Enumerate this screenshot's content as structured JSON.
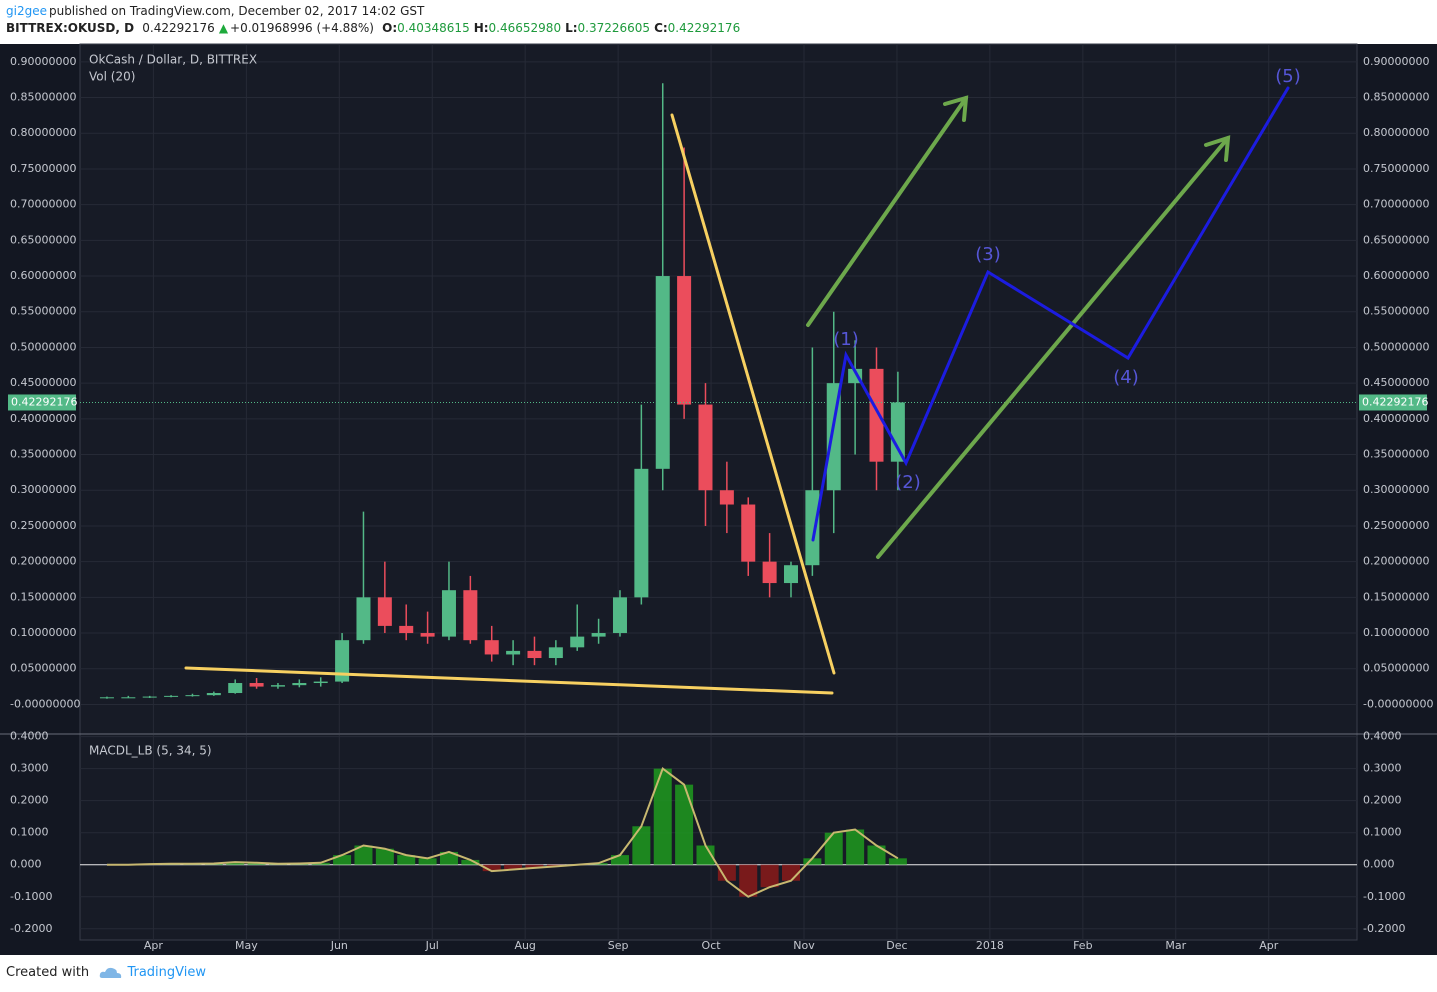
{
  "header": {
    "author": "gi2gee",
    "published": "published on TradingView.com, December 02, 2017 14:02 GST",
    "symbol": "BITTREX:OKUSD, D",
    "price": "0.42292176",
    "change": "+0.01968996 (+4.88%)",
    "ohlc": [
      {
        "label": "O:",
        "value": "0.40348615"
      },
      {
        "label": "H:",
        "value": "0.46652980"
      },
      {
        "label": "L:",
        "value": "0.37226605"
      },
      {
        "label": "C:",
        "value": "0.42292176"
      }
    ]
  },
  "chart_data": [
    {
      "type": "candlestick",
      "title": "OkCash / Dollar, D, BITTREX",
      "indicator": "Vol (20)",
      "up_color": "#53b987",
      "down_color": "#eb4d5c",
      "grid": true,
      "x": [
        3.5,
        3.73,
        3.96,
        4.19,
        4.42,
        4.65,
        4.88,
        5.11,
        5.34,
        5.57,
        5.8,
        6.03,
        6.26,
        6.49,
        6.72,
        6.95,
        7.18,
        7.41,
        7.64,
        7.87,
        8.1,
        8.33,
        8.56,
        8.79,
        9.02,
        9.25,
        9.48,
        9.71,
        9.94,
        10.17,
        10.4,
        10.63,
        10.86,
        11.09,
        11.32,
        11.55,
        11.78,
        12.01
      ],
      "open": [
        0.009,
        0.01,
        0.01,
        0.011,
        0.012,
        0.013,
        0.016,
        0.03,
        0.025,
        0.027,
        0.03,
        0.032,
        0.09,
        0.15,
        0.11,
        0.1,
        0.095,
        0.16,
        0.09,
        0.07,
        0.075,
        0.065,
        0.08,
        0.095,
        0.1,
        0.15,
        0.33,
        0.6,
        0.42,
        0.3,
        0.28,
        0.2,
        0.17,
        0.195,
        0.3,
        0.45,
        0.47,
        0.34
      ],
      "high": [
        0.011,
        0.012,
        0.012,
        0.013,
        0.015,
        0.018,
        0.035,
        0.037,
        0.03,
        0.035,
        0.038,
        0.1,
        0.27,
        0.2,
        0.14,
        0.13,
        0.2,
        0.18,
        0.11,
        0.09,
        0.095,
        0.09,
        0.14,
        0.12,
        0.16,
        0.42,
        0.87,
        0.78,
        0.45,
        0.34,
        0.29,
        0.24,
        0.2,
        0.5,
        0.55,
        0.51,
        0.5,
        0.466
      ],
      "low": [
        0.008,
        0.009,
        0.009,
        0.01,
        0.011,
        0.012,
        0.015,
        0.022,
        0.022,
        0.024,
        0.025,
        0.03,
        0.085,
        0.1,
        0.09,
        0.085,
        0.09,
        0.085,
        0.06,
        0.055,
        0.055,
        0.055,
        0.075,
        0.085,
        0.095,
        0.14,
        0.3,
        0.4,
        0.25,
        0.24,
        0.18,
        0.15,
        0.15,
        0.18,
        0.24,
        0.35,
        0.3,
        0.3
      ],
      "close": [
        0.01,
        0.01,
        0.011,
        0.012,
        0.013,
        0.016,
        0.03,
        0.025,
        0.027,
        0.03,
        0.032,
        0.09,
        0.15,
        0.11,
        0.1,
        0.095,
        0.16,
        0.09,
        0.07,
        0.075,
        0.065,
        0.08,
        0.095,
        0.1,
        0.15,
        0.33,
        0.6,
        0.42,
        0.3,
        0.28,
        0.2,
        0.17,
        0.195,
        0.3,
        0.45,
        0.47,
        0.34,
        0.423
      ],
      "last_price": 0.42292176,
      "xlim": [
        3.21,
        16.95
      ],
      "ylim": [
        -0.04,
        0.925
      ],
      "yticks": [
        {
          "value": 0.9,
          "label": "0.90000000"
        },
        {
          "value": 0.85,
          "label": "0.85000000"
        },
        {
          "value": 0.8,
          "label": "0.80000000"
        },
        {
          "value": 0.75,
          "label": "0.75000000"
        },
        {
          "value": 0.7,
          "label": "0.70000000"
        },
        {
          "value": 0.65,
          "label": "0.65000000"
        },
        {
          "value": 0.6,
          "label": "0.60000000"
        },
        {
          "value": 0.55,
          "label": "0.55000000"
        },
        {
          "value": 0.5,
          "label": "0.50000000"
        },
        {
          "value": 0.45,
          "label": "0.45000000"
        },
        {
          "value": 0.4,
          "label": "0.40000000"
        },
        {
          "value": 0.35,
          "label": "0.35000000"
        },
        {
          "value": 0.3,
          "label": "0.30000000"
        },
        {
          "value": 0.25,
          "label": "0.25000000"
        },
        {
          "value": 0.2,
          "label": "0.20000000"
        },
        {
          "value": 0.15,
          "label": "0.15000000"
        },
        {
          "value": 0.1,
          "label": "0.10000000"
        },
        {
          "value": 0.05,
          "label": "0.05000000"
        },
        {
          "value": 0,
          "label": "-0.00000000"
        }
      ],
      "annotations": [
        "(1)",
        "(2)",
        "(3)",
        "(4)",
        "(5)"
      ]
    },
    {
      "type": "bar",
      "title": "MACDL_LB (5, 34, 5)",
      "positive_color": "#1e9a1e",
      "negative_color": "#8b1a1a",
      "line_color": "#c8b870",
      "grid": true,
      "x": [
        3.5,
        3.73,
        3.96,
        4.19,
        4.42,
        4.65,
        4.88,
        5.11,
        5.34,
        5.57,
        5.8,
        6.03,
        6.26,
        6.49,
        6.72,
        6.95,
        7.18,
        7.41,
        7.64,
        7.87,
        8.1,
        8.33,
        8.56,
        8.79,
        9.02,
        9.25,
        9.48,
        9.71,
        9.94,
        10.17,
        10.4,
        10.63,
        10.86,
        11.09,
        11.32,
        11.55,
        11.78,
        12.01
      ],
      "values": [
        0,
        0,
        0.002,
        0.003,
        0.003,
        0.004,
        0.008,
        0.006,
        0.003,
        0.004,
        0.006,
        0.03,
        0.06,
        0.05,
        0.03,
        0.02,
        0.04,
        0.015,
        -0.02,
        -0.015,
        -0.01,
        -0.005,
        0,
        0.005,
        0.03,
        0.12,
        0.3,
        0.25,
        0.06,
        -0.05,
        -0.1,
        -0.07,
        -0.05,
        0.02,
        0.1,
        0.11,
        0.06,
        0.02
      ],
      "xlim": [
        3.21,
        16.95
      ],
      "ylim": [
        -0.235,
        0.405
      ],
      "yticks": [
        {
          "value": 0.4,
          "label": "0.4000"
        },
        {
          "value": 0.3,
          "label": "0.3000"
        },
        {
          "value": 0.2,
          "label": "0.2000"
        },
        {
          "value": 0.1,
          "label": "0.1000"
        },
        {
          "value": 0,
          "label": "0.000"
        },
        {
          "value": -0.1,
          "label": "-0.1000"
        },
        {
          "value": -0.2,
          "label": "-0.2000"
        }
      ],
      "xticks": [
        {
          "value": 4,
          "label": "Apr"
        },
        {
          "value": 5,
          "label": "May"
        },
        {
          "value": 6,
          "label": "Jun"
        },
        {
          "value": 7,
          "label": "Jul"
        },
        {
          "value": 8,
          "label": "Aug"
        },
        {
          "value": 9,
          "label": "Sep"
        },
        {
          "value": 10,
          "label": "Oct"
        },
        {
          "value": 11,
          "label": "Nov"
        },
        {
          "value": 12,
          "label": "Dec"
        },
        {
          "value": 13,
          "label": "2018"
        },
        {
          "value": 14,
          "label": "Feb"
        },
        {
          "value": 15,
          "label": "Mar"
        },
        {
          "value": 16,
          "label": "Apr"
        }
      ]
    }
  ],
  "footer": {
    "created": "Created with",
    "brand": "TradingView"
  }
}
